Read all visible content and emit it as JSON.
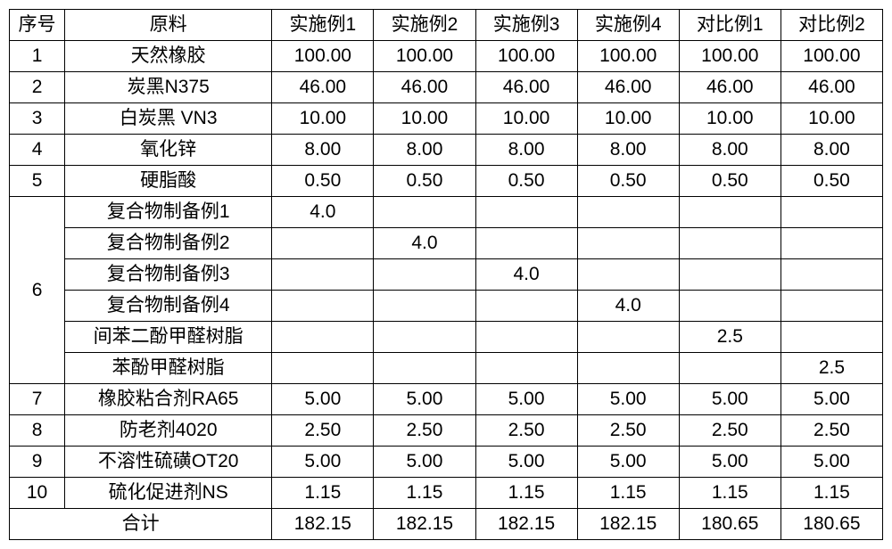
{
  "header": {
    "idx": "序号",
    "name": "原料",
    "c1": "实施例1",
    "c2": "实施例2",
    "c3": "实施例3",
    "c4": "实施例4",
    "c5": "对比例1",
    "c6": "对比例2"
  },
  "rows": {
    "r1": {
      "idx": "1",
      "name": "天然橡胶",
      "v": [
        "100.00",
        "100.00",
        "100.00",
        "100.00",
        "100.00",
        "100.00"
      ]
    },
    "r2": {
      "idx": "2",
      "name": "炭黑N375",
      "v": [
        "46.00",
        "46.00",
        "46.00",
        "46.00",
        "46.00",
        "46.00"
      ]
    },
    "r3": {
      "idx": "3",
      "name": "白炭黑 VN3",
      "v": [
        "10.00",
        "10.00",
        "10.00",
        "10.00",
        "10.00",
        "10.00"
      ]
    },
    "r4": {
      "idx": "4",
      "name": "氧化锌",
      "v": [
        "8.00",
        "8.00",
        "8.00",
        "8.00",
        "8.00",
        "8.00"
      ]
    },
    "r5": {
      "idx": "5",
      "name": "硬脂酸",
      "v": [
        "0.50",
        "0.50",
        "0.50",
        "0.50",
        "0.50",
        "0.50"
      ]
    },
    "r6": {
      "idx": "6",
      "sub": [
        {
          "name": "复合物制备例1",
          "v": [
            "4.0",
            "",
            "",
            "",
            "",
            ""
          ]
        },
        {
          "name": "复合物制备例2",
          "v": [
            "",
            "4.0",
            "",
            "",
            "",
            ""
          ]
        },
        {
          "name": "复合物制备例3",
          "v": [
            "",
            "",
            "4.0",
            "",
            "",
            ""
          ]
        },
        {
          "name": "复合物制备例4",
          "v": [
            "",
            "",
            "",
            "4.0",
            "",
            ""
          ]
        },
        {
          "name": "间苯二酚甲醛树脂",
          "v": [
            "",
            "",
            "",
            "",
            "2.5",
            ""
          ]
        },
        {
          "name": "苯酚甲醛树脂",
          "v": [
            "",
            "",
            "",
            "",
            "",
            "2.5"
          ]
        }
      ]
    },
    "r7": {
      "idx": "7",
      "name": "橡胶粘合剂RA65",
      "v": [
        "5.00",
        "5.00",
        "5.00",
        "5.00",
        "5.00",
        "5.00"
      ]
    },
    "r8": {
      "idx": "8",
      "name": "防老剂4020",
      "v": [
        "2.50",
        "2.50",
        "2.50",
        "2.50",
        "2.50",
        "2.50"
      ]
    },
    "r9": {
      "idx": "9",
      "name": "不溶性硫磺OT20",
      "v": [
        "5.00",
        "5.00",
        "5.00",
        "5.00",
        "5.00",
        "5.00"
      ]
    },
    "r10": {
      "idx": "10",
      "name": "硫化促进剂NS",
      "v": [
        "1.15",
        "1.15",
        "1.15",
        "1.15",
        "1.15",
        "1.15"
      ]
    }
  },
  "total": {
    "label": "合计",
    "v": [
      "182.15",
      "182.15",
      "182.15",
      "182.15",
      "180.65",
      "180.65"
    ]
  }
}
